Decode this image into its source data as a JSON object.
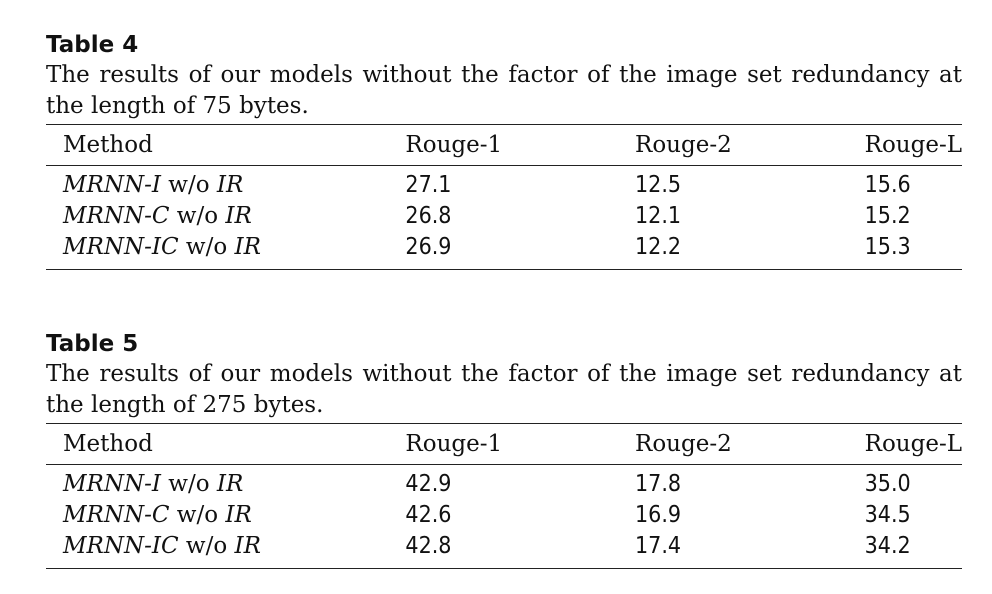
{
  "tables": [
    {
      "label": "Table 4",
      "caption_lines": [
        "The results of our models without the factor of the image set redundancy at",
        "the length of 75 bytes."
      ],
      "headers": [
        "Method",
        "Rouge-1",
        "Rouge-2",
        "Rouge-L"
      ],
      "rows": [
        {
          "model": "MRNN-I",
          "suffix": " w/o ",
          "ablation": "IR",
          "rouge1": "27.1",
          "rouge2": "12.5",
          "rougeL": "15.6"
        },
        {
          "model": "MRNN-C",
          "suffix": " w/o ",
          "ablation": "IR",
          "rouge1": "26.8",
          "rouge2": "12.1",
          "rougeL": "15.2"
        },
        {
          "model": "MRNN-IC",
          "suffix": " w/o ",
          "ablation": "IR",
          "rouge1": "26.9",
          "rouge2": "12.2",
          "rougeL": "15.3"
        }
      ]
    },
    {
      "label": "Table 5",
      "caption_lines": [
        "The results of our models without the factor of the image set redundancy at",
        "the length of 275 bytes."
      ],
      "headers": [
        "Method",
        "Rouge-1",
        "Rouge-2",
        "Rouge-L"
      ],
      "rows": [
        {
          "model": "MRNN-I",
          "suffix": " w/o ",
          "ablation": "IR",
          "rouge1": "42.9",
          "rouge2": "17.8",
          "rougeL": "35.0"
        },
        {
          "model": "MRNN-C",
          "suffix": " w/o ",
          "ablation": "IR",
          "rouge1": "42.6",
          "rouge2": "16.9",
          "rougeL": "34.5"
        },
        {
          "model": "MRNN-IC",
          "suffix": " w/o ",
          "ablation": "IR",
          "rouge1": "42.8",
          "rouge2": "17.4",
          "rougeL": "34.2"
        }
      ]
    }
  ]
}
